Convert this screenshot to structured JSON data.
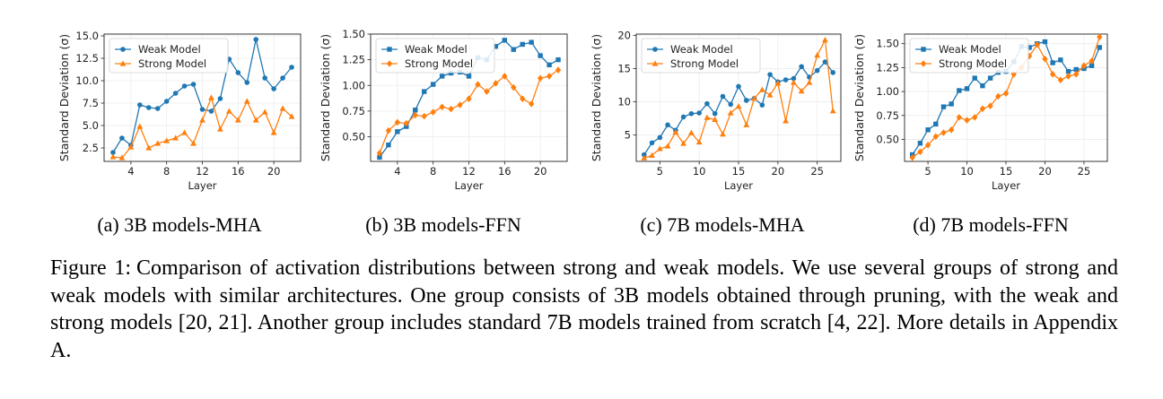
{
  "figure": {
    "subcaptions": [
      "(a) 3B models-MHA",
      "(b) 3B models-FFN",
      "(c) 7B models-MHA",
      "(d) 7B models-FFN"
    ],
    "caption_label": "Figure 1:",
    "caption_text": "Comparison of activation distributions between strong and weak models. We use several groups of strong and weak models with similar architectures. One group consists of 3B models obtained through pruning, with the weak and strong models [20, 21]. Another group includes standard 7B models trained from scratch [4, 22]. More details in Appendix A."
  },
  "colors": {
    "weak": "#1f77b4",
    "strong": "#ff7f0e"
  },
  "chart_data": [
    {
      "type": "line",
      "xlabel": "Layer",
      "ylabel": "Standard Deviation (σ)",
      "xlim": [
        1.0,
        23.0
      ],
      "ylim": [
        1.0,
        15.2
      ],
      "xticks": [
        4,
        8,
        12,
        16,
        20
      ],
      "yticks": [
        2.5,
        5.0,
        7.5,
        10.0,
        12.5,
        15.0
      ],
      "ytick_labels": [
        "2.5",
        "5.0",
        "7.5",
        "10.0",
        "12.5",
        "15.0"
      ],
      "grid": true,
      "legend": "top-left",
      "x": [
        2,
        3,
        4,
        5,
        6,
        7,
        8,
        9,
        10,
        11,
        12,
        13,
        14,
        15,
        16,
        17,
        18,
        19,
        20,
        21,
        22
      ],
      "series": [
        {
          "name": "Weak Model",
          "marker": "circle",
          "color": "#1f77b4",
          "values": [
            2.0,
            3.6,
            2.8,
            7.3,
            7.0,
            6.9,
            7.7,
            8.6,
            9.4,
            9.6,
            6.8,
            6.6,
            8.0,
            12.4,
            10.9,
            9.8,
            14.6,
            10.3,
            9.1,
            10.3,
            11.5
          ]
        },
        {
          "name": "Strong Model",
          "marker": "triangle",
          "color": "#ff7f0e",
          "values": [
            1.5,
            1.4,
            2.6,
            4.9,
            2.5,
            3.0,
            3.3,
            3.6,
            4.2,
            3.0,
            5.6,
            8.1,
            4.6,
            6.6,
            5.6,
            7.7,
            5.6,
            6.5,
            4.2,
            6.9,
            6.0
          ]
        }
      ]
    },
    {
      "type": "line",
      "xlabel": "Layer",
      "ylabel": "Standard Deviation (σ)",
      "xlim": [
        1.0,
        23.0
      ],
      "ylim": [
        0.26,
        1.5
      ],
      "xticks": [
        4,
        8,
        12,
        16,
        20
      ],
      "yticks": [
        0.5,
        0.75,
        1.0,
        1.25,
        1.5
      ],
      "ytick_labels": [
        "0.50",
        "0.75",
        "1.00",
        "1.25",
        "1.50"
      ],
      "grid": true,
      "legend": "top-left",
      "x": [
        2,
        3,
        4,
        5,
        6,
        7,
        8,
        9,
        10,
        11,
        12,
        13,
        14,
        15,
        16,
        17,
        18,
        19,
        20,
        21,
        22
      ],
      "series": [
        {
          "name": "Weak Model",
          "marker": "square",
          "color": "#1f77b4",
          "values": [
            0.3,
            0.42,
            0.55,
            0.6,
            0.76,
            0.94,
            1.01,
            1.09,
            1.12,
            1.13,
            1.09,
            1.27,
            1.25,
            1.38,
            1.44,
            1.35,
            1.4,
            1.42,
            1.29,
            1.2,
            1.25
          ]
        },
        {
          "name": "Strong Model",
          "marker": "diamond",
          "color": "#ff7f0e",
          "values": [
            0.34,
            0.56,
            0.64,
            0.63,
            0.71,
            0.7,
            0.74,
            0.79,
            0.77,
            0.81,
            0.87,
            1.01,
            0.94,
            1.02,
            1.09,
            0.98,
            0.87,
            0.82,
            1.07,
            1.09,
            1.15
          ]
        }
      ]
    },
    {
      "type": "line",
      "xlabel": "Layer",
      "ylabel": "Standard Deviation (σ)",
      "xlim": [
        2.0,
        28.0
      ],
      "ylim": [
        1.0,
        20.2
      ],
      "xticks": [
        5,
        10,
        15,
        20,
        25
      ],
      "yticks": [
        5,
        10,
        15,
        20
      ],
      "ytick_labels": [
        "5",
        "10",
        "15",
        "20"
      ],
      "grid": true,
      "legend": "top-left",
      "x": [
        3,
        4,
        5,
        6,
        7,
        8,
        9,
        10,
        11,
        12,
        13,
        14,
        15,
        16,
        17,
        18,
        19,
        20,
        21,
        22,
        23,
        24,
        25,
        26,
        27
      ],
      "series": [
        {
          "name": "Weak Model",
          "marker": "circle",
          "color": "#1f77b4",
          "values": [
            2.0,
            3.8,
            4.6,
            6.5,
            5.7,
            7.7,
            8.2,
            8.3,
            9.7,
            8.2,
            10.8,
            9.6,
            12.3,
            10.2,
            10.5,
            9.5,
            14.1,
            13.0,
            13.3,
            13.5,
            15.3,
            13.7,
            14.7,
            16.0,
            14.4
          ]
        },
        {
          "name": "Strong Model",
          "marker": "triangle",
          "color": "#ff7f0e",
          "values": [
            1.5,
            1.9,
            2.9,
            3.3,
            5.4,
            3.7,
            5.3,
            3.9,
            7.6,
            7.3,
            5.1,
            8.3,
            9.3,
            6.5,
            10.5,
            11.8,
            11.0,
            12.8,
            7.1,
            12.9,
            11.6,
            12.9,
            17.0,
            19.3,
            8.6
          ]
        }
      ]
    },
    {
      "type": "line",
      "xlabel": "Layer",
      "ylabel": "Standard Deviation (σ)",
      "xlim": [
        2.0,
        28.0
      ],
      "ylim": [
        0.27,
        1.6
      ],
      "xticks": [
        5,
        10,
        15,
        20,
        25
      ],
      "yticks": [
        0.5,
        0.75,
        1.0,
        1.25,
        1.5
      ],
      "ytick_labels": [
        "0.50",
        "0.75",
        "1.00",
        "1.25",
        "1.50"
      ],
      "grid": true,
      "legend": "top-left",
      "x": [
        3,
        4,
        5,
        6,
        7,
        8,
        9,
        10,
        11,
        12,
        13,
        14,
        15,
        16,
        17,
        18,
        19,
        20,
        21,
        22,
        23,
        24,
        25,
        26,
        27
      ],
      "series": [
        {
          "name": "Weak Model",
          "marker": "square",
          "color": "#1f77b4",
          "values": [
            0.34,
            0.46,
            0.6,
            0.66,
            0.84,
            0.87,
            1.01,
            1.03,
            1.14,
            1.06,
            1.14,
            1.2,
            1.21,
            1.31,
            1.47,
            1.46,
            1.5,
            1.52,
            1.3,
            1.33,
            1.21,
            1.23,
            1.24,
            1.27,
            1.46
          ]
        },
        {
          "name": "Strong Model",
          "marker": "diamond",
          "color": "#ff7f0e",
          "values": [
            0.31,
            0.37,
            0.44,
            0.53,
            0.57,
            0.6,
            0.73,
            0.7,
            0.73,
            0.82,
            0.85,
            0.95,
            0.98,
            1.18,
            1.25,
            1.37,
            1.49,
            1.34,
            1.18,
            1.12,
            1.16,
            1.18,
            1.27,
            1.32,
            1.57
          ]
        }
      ]
    }
  ]
}
